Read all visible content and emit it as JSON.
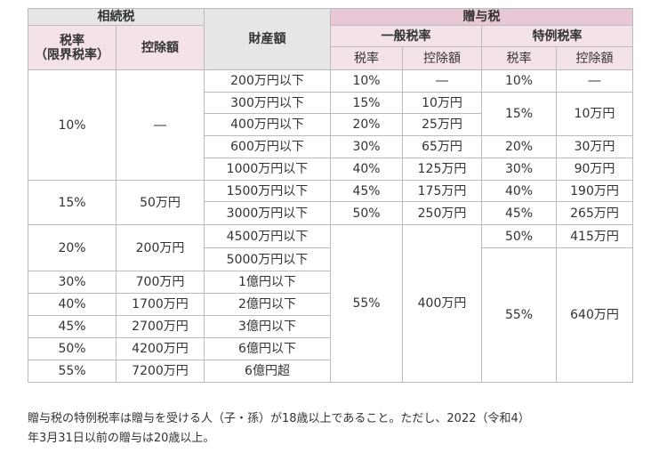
{
  "header": {
    "inheritance": "相続税",
    "inh_rate": "税率\n（限界税率）",
    "inh_deduction": "控除額",
    "property": "財産額",
    "gift": "贈与税",
    "general_rate": "一般税率",
    "special_rate": "特例税率",
    "gen_rate_col": "税率",
    "gen_ded_col": "控除額",
    "spe_rate_col": "税率",
    "spe_ded_col": "控除額"
  },
  "inheritance": [
    {
      "rate": "10%",
      "deduction": "―"
    },
    {
      "rate": "15%",
      "deduction": "50万円"
    },
    {
      "rate": "20%",
      "deduction": "200万円"
    },
    {
      "rate": "30%",
      "deduction": "700万円"
    },
    {
      "rate": "40%",
      "deduction": "1700万円"
    },
    {
      "rate": "45%",
      "deduction": "2700万円"
    },
    {
      "rate": "50%",
      "deduction": "4200万円"
    },
    {
      "rate": "55%",
      "deduction": "7200万円"
    }
  ],
  "property": [
    "200万円以下",
    "300万円以下",
    "400万円以下",
    "600万円以下",
    "1000万円以下",
    "1500万円以下",
    "3000万円以下",
    "4500万円以下",
    "5000万円以下",
    "1億円以下",
    "2億円以下",
    "3億円以下",
    "6億円以下",
    "6億円超"
  ],
  "general": [
    {
      "rate": "10%",
      "deduction": "―"
    },
    {
      "rate": "15%",
      "deduction": "10万円"
    },
    {
      "rate": "20%",
      "deduction": "25万円"
    },
    {
      "rate": "30%",
      "deduction": "65万円"
    },
    {
      "rate": "40%",
      "deduction": "125万円"
    },
    {
      "rate": "45%",
      "deduction": "175万円"
    },
    {
      "rate": "50%",
      "deduction": "250万円"
    },
    {
      "rate": "55%",
      "deduction": "400万円"
    }
  ],
  "special": [
    {
      "rate": "10%",
      "deduction": "―"
    },
    {
      "rate": "15%",
      "deduction": "10万円"
    },
    {
      "rate": "20%",
      "deduction": "30万円"
    },
    {
      "rate": "30%",
      "deduction": "90万円"
    },
    {
      "rate": "40%",
      "deduction": "190万円"
    },
    {
      "rate": "45%",
      "deduction": "265万円"
    },
    {
      "rate": "50%",
      "deduction": "415万円"
    },
    {
      "rate": "55%",
      "deduction": "640万円"
    }
  ],
  "note": {
    "line1": "贈与税の特例税率は贈与を受ける人（子・孫）が18歳以上であること。ただし、2022（令和4）",
    "line2": "年3月31日以前の贈与は20歳以上。"
  }
}
